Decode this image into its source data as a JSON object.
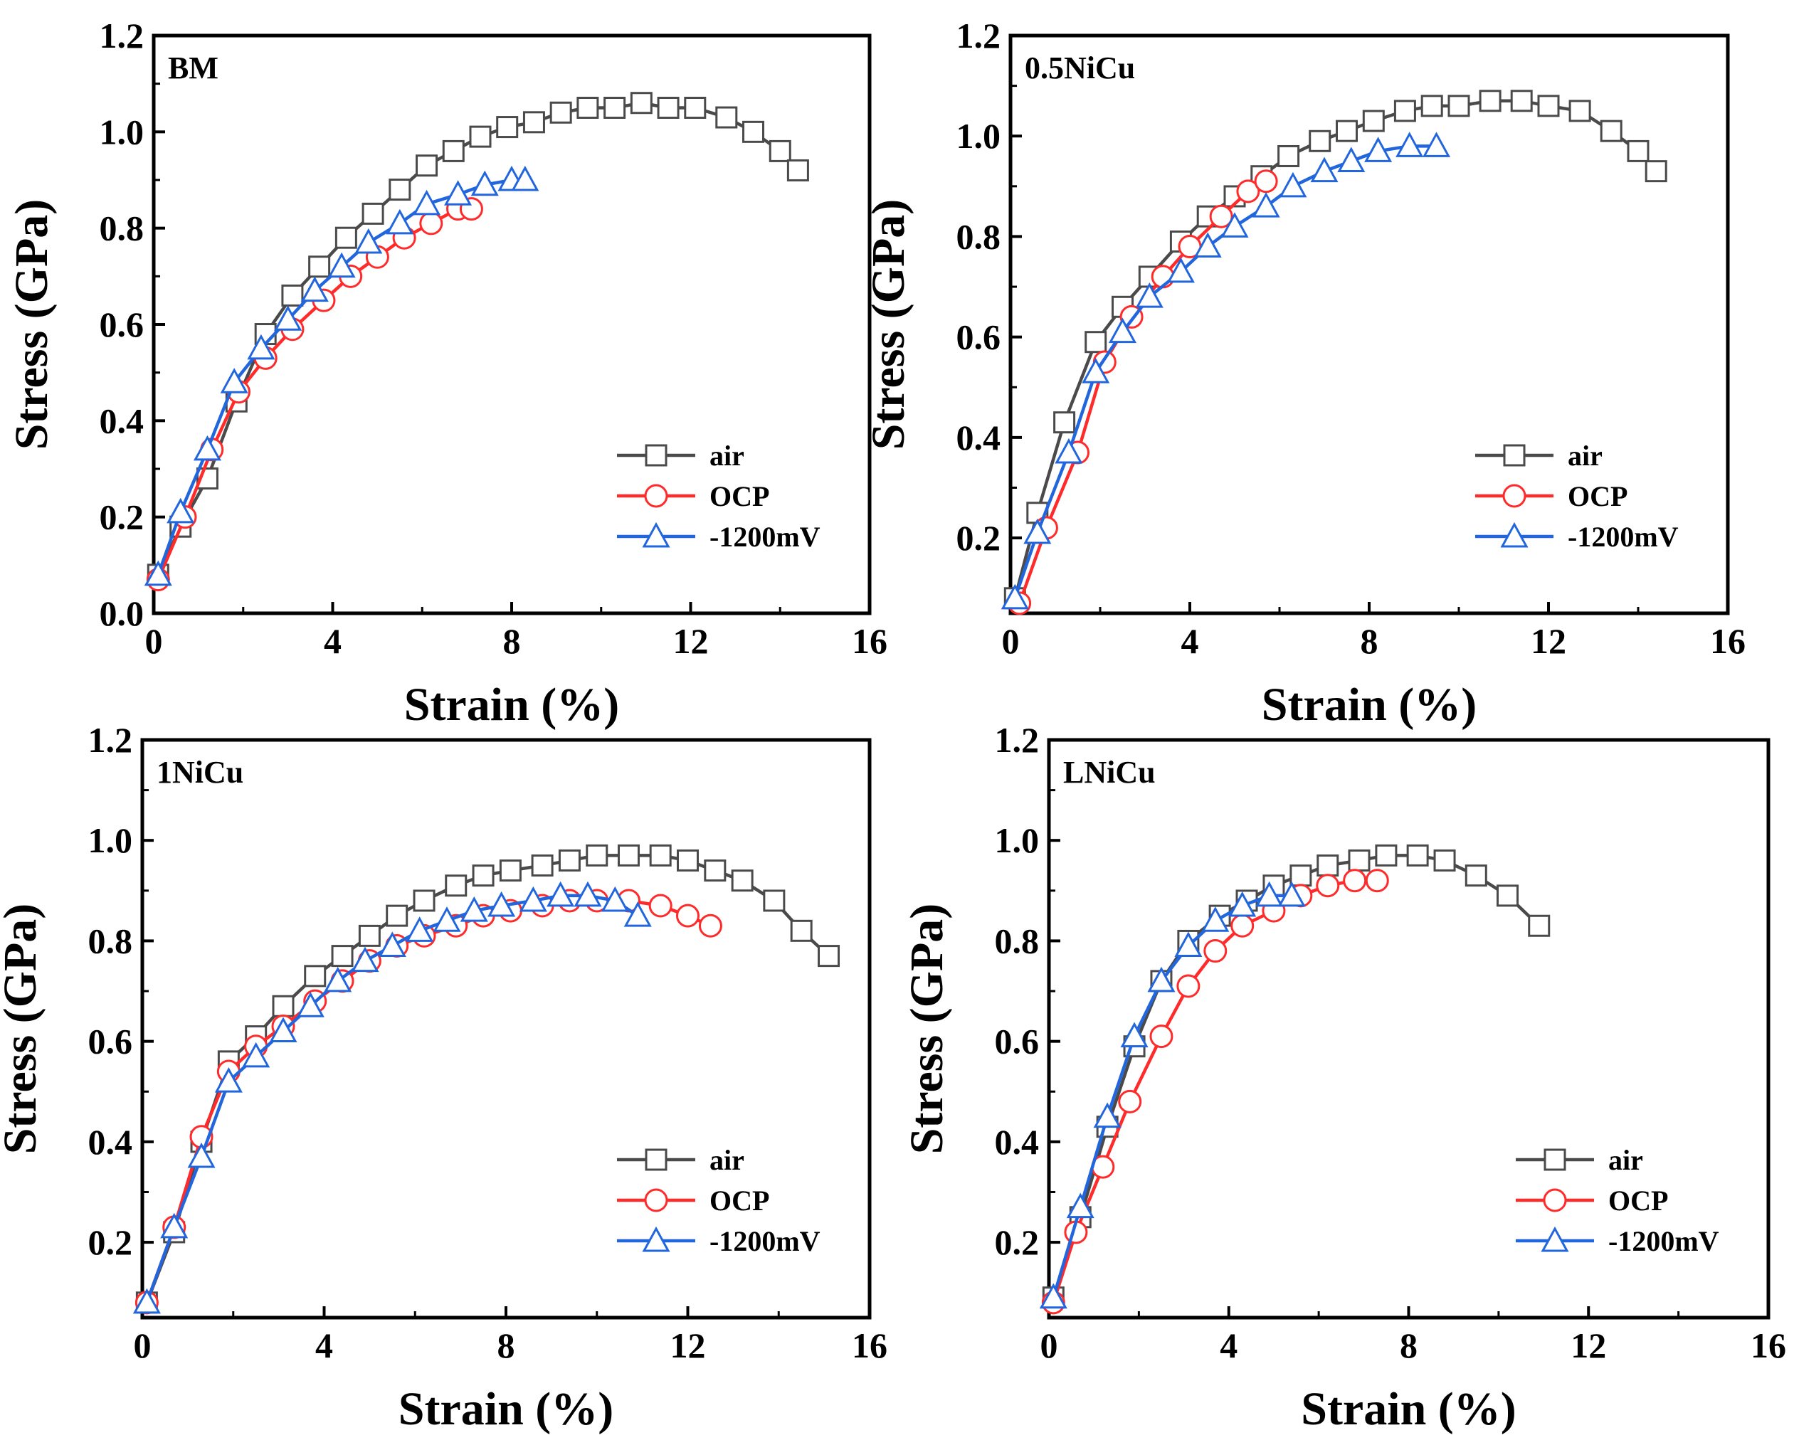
{
  "figure": {
    "colors": {
      "air": "#4a4a4a",
      "ocp": "#ff2a2a",
      "cathodic": "#2266dd"
    }
  },
  "chart_data": [
    {
      "type": "line",
      "title": "BM",
      "xlabel": "Strain (%)",
      "ylabel": "Stress (GPa)",
      "xlim": [
        0,
        16
      ],
      "ylim": [
        0,
        1.2
      ],
      "xticks": [
        "0",
        "4",
        "8",
        "12",
        "16"
      ],
      "yticks": [
        "0.0",
        "0.2",
        "0.4",
        "0.6",
        "0.8",
        "1.0",
        "1.2"
      ],
      "legend": [
        "air",
        "OCP",
        "-1200mV"
      ],
      "legend_position": "bottom-right",
      "series": [
        {
          "name": "air",
          "marker": "square",
          "x": [
            0.1,
            0.6,
            1.2,
            1.85,
            2.5,
            3.1,
            3.7,
            4.3,
            4.9,
            5.5,
            6.1,
            6.7,
            7.3,
            7.9,
            8.5,
            9.1,
            9.7,
            10.3,
            10.9,
            11.5,
            12.1,
            12.8,
            13.4,
            14.0,
            14.4
          ],
          "y": [
            0.08,
            0.18,
            0.28,
            0.44,
            0.58,
            0.66,
            0.72,
            0.78,
            0.83,
            0.88,
            0.93,
            0.96,
            0.99,
            1.01,
            1.02,
            1.04,
            1.05,
            1.05,
            1.06,
            1.05,
            1.05,
            1.03,
            1.0,
            0.96,
            0.92
          ]
        },
        {
          "name": "OCP",
          "marker": "circle",
          "x": [
            0.1,
            0.7,
            1.3,
            1.9,
            2.5,
            3.1,
            3.8,
            4.4,
            5.0,
            5.6,
            6.2,
            6.8,
            7.1
          ],
          "y": [
            0.07,
            0.2,
            0.34,
            0.46,
            0.53,
            0.59,
            0.65,
            0.7,
            0.74,
            0.78,
            0.81,
            0.84,
            0.84
          ]
        },
        {
          "name": "-1200mV",
          "marker": "triangle",
          "x": [
            0.1,
            0.6,
            1.2,
            1.8,
            2.4,
            3.0,
            3.6,
            4.2,
            4.8,
            5.5,
            6.1,
            6.8,
            7.4,
            8.0,
            8.3
          ],
          "y": [
            0.08,
            0.21,
            0.34,
            0.48,
            0.55,
            0.61,
            0.67,
            0.72,
            0.77,
            0.81,
            0.85,
            0.87,
            0.89,
            0.9,
            0.9
          ]
        }
      ]
    },
    {
      "type": "line",
      "title": "0.5NiCu",
      "xlabel": "Strain (%)",
      "ylabel": "Stress (GPa)",
      "xlim": [
        0,
        16
      ],
      "ylim": [
        0.05,
        1.2
      ],
      "xticks": [
        "0",
        "4",
        "8",
        "12",
        "16"
      ],
      "yticks": [
        "0.2",
        "0.4",
        "0.6",
        "0.8",
        "1.0",
        "1.2"
      ],
      "legend": [
        "air",
        "OCP",
        "-1200mV"
      ],
      "legend_position": "bottom-right",
      "series": [
        {
          "name": "air",
          "marker": "square",
          "x": [
            0.1,
            0.6,
            1.2,
            1.9,
            2.5,
            3.1,
            3.8,
            4.4,
            5.0,
            5.6,
            6.2,
            6.9,
            7.5,
            8.1,
            8.8,
            9.4,
            10.0,
            10.7,
            11.4,
            12.0,
            12.7,
            13.4,
            14.0,
            14.4
          ],
          "y": [
            0.08,
            0.25,
            0.43,
            0.59,
            0.66,
            0.72,
            0.79,
            0.84,
            0.88,
            0.92,
            0.96,
            0.99,
            1.01,
            1.03,
            1.05,
            1.06,
            1.06,
            1.07,
            1.07,
            1.06,
            1.05,
            1.01,
            0.97,
            0.93
          ]
        },
        {
          "name": "OCP",
          "marker": "circle",
          "x": [
            0.2,
            0.8,
            1.5,
            2.1,
            2.7,
            3.4,
            4.0,
            4.7,
            5.3,
            5.7
          ],
          "y": [
            0.07,
            0.22,
            0.37,
            0.55,
            0.64,
            0.72,
            0.78,
            0.84,
            0.89,
            0.91
          ]
        },
        {
          "name": "-1200mV",
          "marker": "triangle",
          "x": [
            0.1,
            0.6,
            1.3,
            1.9,
            2.5,
            3.1,
            3.8,
            4.4,
            5.0,
            5.7,
            6.3,
            7.0,
            7.6,
            8.2,
            8.9,
            9.5
          ],
          "y": [
            0.08,
            0.21,
            0.37,
            0.53,
            0.61,
            0.68,
            0.73,
            0.78,
            0.82,
            0.86,
            0.9,
            0.93,
            0.95,
            0.97,
            0.98,
            0.98
          ]
        }
      ]
    },
    {
      "type": "line",
      "title": "1NiCu",
      "xlabel": "Strain (%)",
      "ylabel": "Stress (GPa)",
      "xlim": [
        0,
        16
      ],
      "ylim": [
        0.05,
        1.2
      ],
      "xticks": [
        "0",
        "4",
        "8",
        "12",
        "16"
      ],
      "yticks": [
        "0.2",
        "0.4",
        "0.6",
        "0.8",
        "1.0",
        "1.2"
      ],
      "legend": [
        "air",
        "OCP",
        "-1200mV"
      ],
      "legend_position": "bottom-right",
      "series": [
        {
          "name": "air",
          "marker": "square",
          "x": [
            0.1,
            0.7,
            1.3,
            1.9,
            2.5,
            3.1,
            3.8,
            4.4,
            5.0,
            5.6,
            6.2,
            6.9,
            7.5,
            8.1,
            8.8,
            9.4,
            10.0,
            10.7,
            11.4,
            12.0,
            12.6,
            13.2,
            13.9,
            14.5,
            15.1
          ],
          "y": [
            0.08,
            0.22,
            0.4,
            0.56,
            0.61,
            0.67,
            0.73,
            0.77,
            0.81,
            0.85,
            0.88,
            0.91,
            0.93,
            0.94,
            0.95,
            0.96,
            0.97,
            0.97,
            0.97,
            0.96,
            0.94,
            0.92,
            0.88,
            0.82,
            0.77
          ]
        },
        {
          "name": "OCP",
          "marker": "circle",
          "x": [
            0.1,
            0.7,
            1.3,
            1.9,
            2.5,
            3.1,
            3.8,
            4.4,
            5.0,
            5.6,
            6.2,
            6.9,
            7.5,
            8.1,
            8.8,
            9.4,
            10.0,
            10.7,
            11.4,
            12.0,
            12.5
          ],
          "y": [
            0.08,
            0.23,
            0.41,
            0.54,
            0.59,
            0.63,
            0.68,
            0.72,
            0.76,
            0.79,
            0.81,
            0.83,
            0.85,
            0.86,
            0.87,
            0.88,
            0.88,
            0.88,
            0.87,
            0.85,
            0.83
          ]
        },
        {
          "name": "-1200mV",
          "marker": "triangle",
          "x": [
            0.1,
            0.7,
            1.3,
            1.9,
            2.5,
            3.1,
            3.7,
            4.3,
            4.9,
            5.5,
            6.1,
            6.7,
            7.3,
            7.9,
            8.6,
            9.2,
            9.8,
            10.4,
            10.9
          ],
          "y": [
            0.08,
            0.23,
            0.37,
            0.52,
            0.57,
            0.62,
            0.67,
            0.72,
            0.76,
            0.79,
            0.82,
            0.84,
            0.86,
            0.87,
            0.88,
            0.89,
            0.89,
            0.88,
            0.85
          ]
        }
      ]
    },
    {
      "type": "line",
      "title": "LNiCu",
      "xlabel": "Strain (%)",
      "ylabel": "Stress (GPa)",
      "xlim": [
        0,
        16
      ],
      "ylim": [
        0.05,
        1.2
      ],
      "xticks": [
        "0",
        "4",
        "8",
        "12",
        "16"
      ],
      "yticks": [
        "0.2",
        "0.4",
        "0.6",
        "0.8",
        "1.0",
        "1.2"
      ],
      "legend": [
        "air",
        "OCP",
        "-1200mV"
      ],
      "legend_position": "bottom-right",
      "series": [
        {
          "name": "air",
          "marker": "square",
          "x": [
            0.1,
            0.7,
            1.3,
            1.9,
            2.5,
            3.1,
            3.8,
            4.4,
            5.0,
            5.6,
            6.2,
            6.9,
            7.5,
            8.2,
            8.8,
            9.5,
            10.2,
            10.9
          ],
          "y": [
            0.09,
            0.25,
            0.43,
            0.59,
            0.72,
            0.8,
            0.85,
            0.88,
            0.91,
            0.93,
            0.95,
            0.96,
            0.97,
            0.97,
            0.96,
            0.93,
            0.89,
            0.83
          ]
        },
        {
          "name": "OCP",
          "marker": "circle",
          "x": [
            0.1,
            0.6,
            1.2,
            1.8,
            2.5,
            3.1,
            3.7,
            4.3,
            5.0,
            5.6,
            6.2,
            6.8,
            7.3
          ],
          "y": [
            0.08,
            0.22,
            0.35,
            0.48,
            0.61,
            0.71,
            0.78,
            0.83,
            0.86,
            0.89,
            0.91,
            0.92,
            0.92
          ]
        },
        {
          "name": "-1200mV",
          "marker": "triangle",
          "x": [
            0.1,
            0.7,
            1.3,
            1.9,
            2.5,
            3.1,
            3.7,
            4.3,
            4.9,
            5.4
          ],
          "y": [
            0.09,
            0.27,
            0.45,
            0.61,
            0.72,
            0.79,
            0.84,
            0.87,
            0.89,
            0.89
          ]
        }
      ]
    }
  ]
}
